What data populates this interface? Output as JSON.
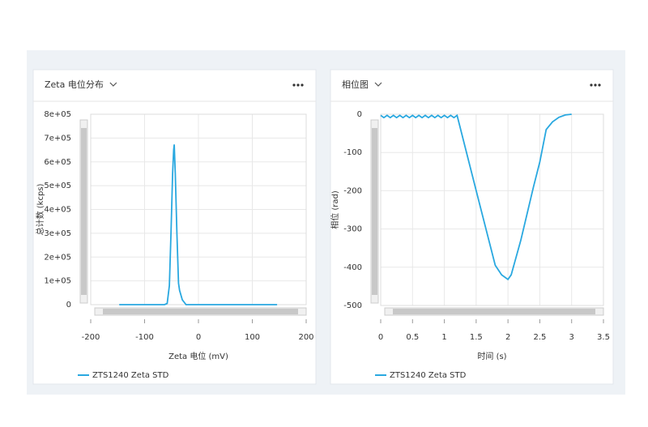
{
  "chart_data": [
    {
      "type": "line",
      "title": "Zeta 电位分布",
      "x_label": "Zeta 电位 (mV)",
      "y_label": "总计数 (kcps)",
      "xlim": [
        -200,
        200
      ],
      "xticks": [
        -200,
        -100,
        0,
        100,
        200
      ],
      "ylim": [
        0,
        800000
      ],
      "yticks": [
        0,
        {
          "value": 100000,
          "label": "1e+05"
        },
        {
          "value": 200000,
          "label": "2e+05"
        },
        {
          "value": 300000,
          "label": "3e+05"
        },
        {
          "value": 400000,
          "label": "4e+05"
        },
        {
          "value": 500000,
          "label": "5e+05"
        },
        {
          "value": 600000,
          "label": "6e+05"
        },
        {
          "value": 700000,
          "label": "7e+05"
        },
        {
          "value": 800000,
          "label": "8e+05"
        }
      ],
      "grid": true,
      "series": [
        {
          "name": "ZTS1240 Zeta STD",
          "color": "#29a8e0",
          "x": [
            -147,
            -63,
            -58,
            -54,
            -51,
            -48,
            -46,
            -45,
            -43,
            -40,
            -37,
            -35,
            -30,
            -23,
            146
          ],
          "values": [
            0,
            0,
            5000,
            80000,
            300000,
            550000,
            650000,
            673000,
            550000,
            300000,
            90000,
            60000,
            20000,
            0,
            0
          ]
        }
      ]
    },
    {
      "type": "line",
      "title": "相位图",
      "x_label": "时间 (s)",
      "y_label": "相位 (rad)",
      "xlim": [
        0,
        3.5
      ],
      "xticks": [
        0,
        0.5,
        1,
        1.5,
        2,
        2.5,
        3,
        3.5
      ],
      "ylim": [
        -500,
        0
      ],
      "yticks": [
        -500,
        -400,
        -300,
        -200,
        -100,
        0
      ],
      "grid": true,
      "series": [
        {
          "name": "ZTS1240 Zeta STD",
          "color": "#29a8e0",
          "x": [
            0,
            0.05,
            0.1,
            0.15,
            0.2,
            0.25,
            0.3,
            0.35,
            0.4,
            0.45,
            0.5,
            0.55,
            0.6,
            0.65,
            0.7,
            0.75,
            0.8,
            0.85,
            0.9,
            0.95,
            1,
            1.05,
            1.1,
            1.15,
            1.2,
            1.5,
            1.8,
            1.9,
            2,
            2.05,
            2.2,
            2.4,
            2.5,
            2.6,
            2.7,
            2.8,
            2.9,
            3
          ],
          "values": [
            -3,
            -9,
            -3,
            -9,
            -3,
            -9,
            -3,
            -9,
            -3,
            -9,
            -3,
            -9,
            -3,
            -9,
            -3,
            -9,
            -3,
            -9,
            -3,
            -9,
            -3,
            -9,
            -3,
            -9,
            -3,
            -200,
            -395,
            -420,
            -432,
            -420,
            -330,
            -190,
            -125,
            -40,
            -20,
            -8,
            -2,
            0
          ]
        }
      ]
    }
  ]
}
